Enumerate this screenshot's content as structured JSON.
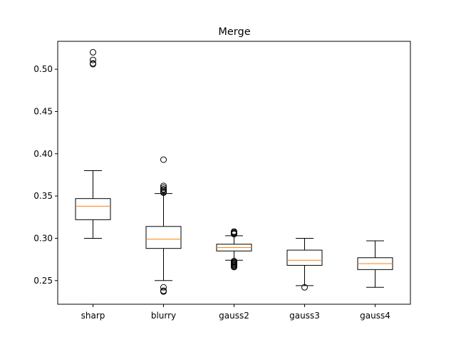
{
  "chart_data": {
    "type": "boxplot",
    "title": "Merge",
    "xlabel": "",
    "ylabel": "",
    "ylim": [
      0.222,
      0.533
    ],
    "yticks": [
      "0.25",
      "0.30",
      "0.35",
      "0.40",
      "0.45",
      "0.50"
    ],
    "categories": [
      "sharp",
      "blurry",
      "gauss2",
      "gauss3",
      "gauss4"
    ],
    "boxes": [
      {
        "label": "sharp",
        "whisker_low": 0.3,
        "q1": 0.322,
        "median": 0.338,
        "q3": 0.347,
        "whisker_high": 0.38,
        "outliers": [
          0.506,
          0.507,
          0.511,
          0.52
        ]
      },
      {
        "label": "blurry",
        "whisker_low": 0.25,
        "q1": 0.288,
        "median": 0.299,
        "q3": 0.314,
        "whisker_high": 0.353,
        "outliers": [
          0.354,
          0.355,
          0.357,
          0.358,
          0.36,
          0.362,
          0.393,
          0.242,
          0.238,
          0.237
        ]
      },
      {
        "label": "gauss2",
        "whisker_low": 0.274,
        "q1": 0.285,
        "median": 0.289,
        "q3": 0.293,
        "whisker_high": 0.303,
        "outliers": [
          0.305,
          0.306,
          0.307,
          0.308,
          0.273,
          0.272,
          0.271,
          0.27,
          0.269,
          0.268,
          0.267,
          0.266
        ]
      },
      {
        "label": "gauss3",
        "whisker_low": 0.244,
        "q1": 0.268,
        "median": 0.274,
        "q3": 0.286,
        "whisker_high": 0.3,
        "outliers": [
          0.242
        ]
      },
      {
        "label": "gauss4",
        "whisker_low": 0.242,
        "q1": 0.263,
        "median": 0.27,
        "q3": 0.277,
        "whisker_high": 0.297,
        "outliers": []
      }
    ],
    "colors": {
      "box": "#000000",
      "median": "#ff7f0e",
      "outlier": "#000000"
    },
    "grid": false
  }
}
